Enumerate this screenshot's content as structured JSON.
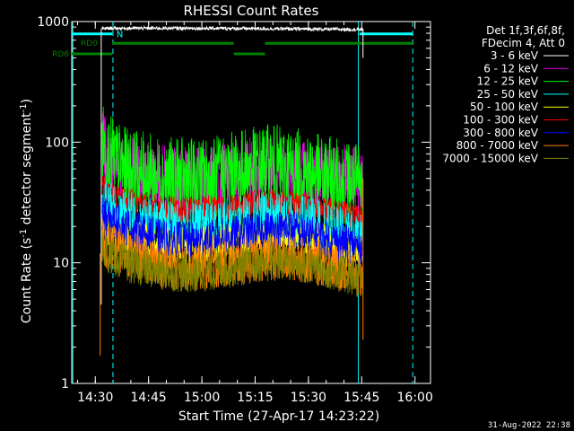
{
  "chart_data": {
    "type": "line",
    "title": "RHESSI Count Rates",
    "xlabel": "Start Time (27-Apr-17 14:23:22)",
    "ylabel_main": "Count Rate (s",
    "ylabel_sup": "-1",
    "ylabel_mid": " detector segment",
    "ylabel_end": ")",
    "yscale": "log",
    "ylim": [
      1,
      1000
    ],
    "xlim_minutes": [
      14.4,
      22.6
    ],
    "x_units": "minutes after 14:23:22 shown as clock times",
    "x_ticks": [
      {
        "label": "14:30",
        "t": 6.63
      },
      {
        "label": "14:45",
        "t": 21.63
      },
      {
        "label": "15:00",
        "t": 36.63
      },
      {
        "label": "15:15",
        "t": 51.63
      },
      {
        "label": "15:30",
        "t": 66.63
      },
      {
        "label": "15:45",
        "t": 81.63
      },
      {
        "label": "16:00",
        "t": 96.63
      }
    ],
    "y_ticks": [
      {
        "label": "1",
        "v": 1
      },
      {
        "label": "10",
        "v": 10
      },
      {
        "label": "100",
        "v": 100
      },
      {
        "label": "1000",
        "v": 1000
      }
    ],
    "x_range_minutes": [
      0,
      101
    ],
    "legend_header": [
      "Det 1f,3f,6f,8f,",
      "FDecim 4, Att 0"
    ],
    "series": [
      {
        "name": "3 - 6 keV",
        "color": "#ffffff",
        "level_points": [
          [
            8.5,
            870
          ],
          [
            10,
            880
          ],
          [
            40,
            880
          ],
          [
            60,
            870
          ],
          [
            80,
            860
          ],
          [
            82,
            860
          ]
        ],
        "noise": 0.015
      },
      {
        "name": "6 - 12 keV",
        "color": "#e000e0",
        "level_points": [
          [
            8.5,
            95
          ],
          [
            10,
            75
          ],
          [
            15,
            58
          ],
          [
            25,
            50
          ],
          [
            35,
            47
          ],
          [
            45,
            52
          ],
          [
            55,
            62
          ],
          [
            62,
            57
          ],
          [
            70,
            52
          ],
          [
            80,
            48
          ],
          [
            82,
            46
          ]
        ],
        "noise": 0.09
      },
      {
        "name": "12 - 25 keV",
        "color": "#00ff00",
        "level_points": [
          [
            8.5,
            100
          ],
          [
            10,
            78
          ],
          [
            15,
            60
          ],
          [
            25,
            50
          ],
          [
            35,
            48
          ],
          [
            45,
            55
          ],
          [
            55,
            64
          ],
          [
            62,
            60
          ],
          [
            70,
            52
          ],
          [
            80,
            45
          ],
          [
            82,
            44
          ]
        ],
        "noise": 0.11
      },
      {
        "name": "25 - 50 keV",
        "color": "#00ffff",
        "level_points": [
          [
            8.5,
            34
          ],
          [
            10,
            30
          ],
          [
            15,
            24
          ],
          [
            25,
            20
          ],
          [
            35,
            19
          ],
          [
            45,
            21
          ],
          [
            55,
            24
          ],
          [
            62,
            23
          ],
          [
            70,
            20
          ],
          [
            80,
            16
          ],
          [
            82,
            16
          ]
        ],
        "noise": 0.07
      },
      {
        "name": "50 - 100 keV",
        "color": "#ffff00",
        "level_points": [
          [
            8.5,
            22
          ],
          [
            10,
            20
          ],
          [
            15,
            17
          ],
          [
            25,
            14
          ],
          [
            35,
            14
          ],
          [
            45,
            15
          ],
          [
            55,
            17
          ],
          [
            62,
            17
          ],
          [
            70,
            15
          ],
          [
            80,
            12
          ],
          [
            82,
            12
          ]
        ],
        "noise": 0.05
      },
      {
        "name": "100 - 300 keV",
        "color": "#ff0000",
        "level_points": [
          [
            8.5,
            45
          ],
          [
            10,
            40
          ],
          [
            15,
            33
          ],
          [
            25,
            28
          ],
          [
            35,
            27
          ],
          [
            45,
            29
          ],
          [
            55,
            32
          ],
          [
            62,
            31
          ],
          [
            70,
            28
          ],
          [
            80,
            24
          ],
          [
            82,
            23
          ]
        ],
        "noise": 0.035
      },
      {
        "name": "300 - 800 keV",
        "color": "#0000ff",
        "level_points": [
          [
            8.5,
            26
          ],
          [
            10,
            23
          ],
          [
            15,
            20
          ],
          [
            25,
            16
          ],
          [
            35,
            15
          ],
          [
            45,
            17
          ],
          [
            55,
            19
          ],
          [
            62,
            19
          ],
          [
            70,
            16
          ],
          [
            80,
            14
          ],
          [
            82,
            13
          ]
        ],
        "noise": 0.05
      },
      {
        "name": "800 - 7000 keV",
        "color": "#ff8000",
        "level_points": [
          [
            8.5,
            15
          ],
          [
            10,
            14
          ],
          [
            15,
            12
          ],
          [
            25,
            9.5
          ],
          [
            35,
            9
          ],
          [
            45,
            10
          ],
          [
            55,
            11
          ],
          [
            62,
            11
          ],
          [
            70,
            10
          ],
          [
            80,
            8.2
          ],
          [
            82,
            7.5
          ]
        ],
        "noise": 0.06
      },
      {
        "name": "7000 - 15000 keV",
        "color": "#808000",
        "level_points": [
          [
            8.5,
            13
          ],
          [
            10,
            12
          ],
          [
            15,
            10
          ],
          [
            25,
            8.5
          ],
          [
            35,
            8
          ],
          [
            45,
            9
          ],
          [
            55,
            10
          ],
          [
            62,
            10
          ],
          [
            70,
            9
          ],
          [
            80,
            7.5
          ],
          [
            82,
            7
          ]
        ],
        "noise": 0.05
      }
    ],
    "vertical_lines": [
      {
        "t": 0.3,
        "style": "solid",
        "color": "#00ffff"
      },
      {
        "t": 11.6,
        "style": "dashed",
        "color": "#00ffff"
      },
      {
        "t": 80.7,
        "style": "solid",
        "color": "#00ffff"
      },
      {
        "t": 96.0,
        "style": "dashed",
        "color": "#00ffff"
      }
    ],
    "status_bars": [
      {
        "label": "",
        "color": "#00ffff",
        "segments": [
          [
            0,
            11.4
          ],
          [
            81,
            96
          ]
        ],
        "level_value": 790
      },
      {
        "label": "RD0",
        "color": "#008000",
        "segments": [
          [
            11.4,
            45.6
          ],
          [
            54.4,
            96
          ]
        ],
        "level_value": 660
      },
      {
        "label": "RD6",
        "color": "#008000",
        "segments": [
          [
            0,
            11.4
          ],
          [
            45.6,
            54.4
          ]
        ],
        "level_value": 540
      },
      {
        "label": "N",
        "color": "#00ffff",
        "segments": [],
        "level_value": 810,
        "at_t": 12.6
      }
    ]
  },
  "footer": {
    "date_stamp": "31-Aug-2022 22:38"
  }
}
